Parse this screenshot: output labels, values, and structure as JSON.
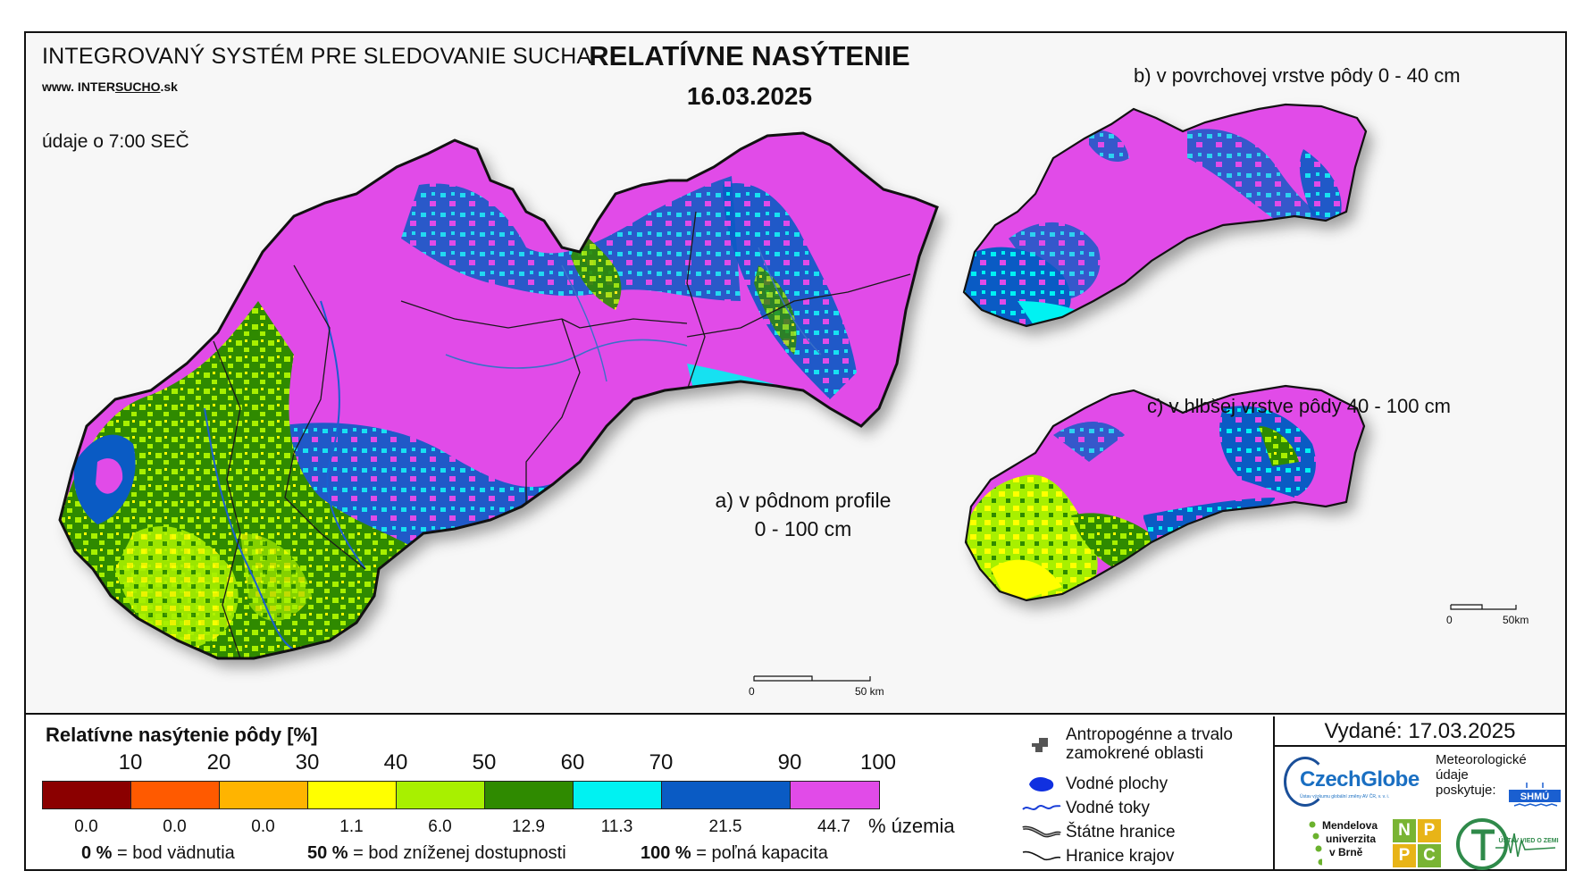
{
  "header": {
    "system_title": "INTEGROVANÝ SYSTÉM PRE SLEDOVANIE SUCHA",
    "web_prefix": "www. INTER",
    "web_brand": "SUCHO",
    "web_suffix": ".sk",
    "hour_note": "údaje o 7:00 SEČ",
    "title": "RELATÍVNE NASÝTENIE",
    "date": "16.03.2025"
  },
  "panels": {
    "a_line1": "a) v pôdnom profile",
    "a_line2": "0 - 100 cm",
    "b": "b) v povrchovej vrstve pôdy 0 - 40 cm",
    "c": "c) v hlbšej vrstve pôdy 40 - 100 cm"
  },
  "scales": {
    "main_zero": "0",
    "main_km": "50 km",
    "small_zero": "0",
    "small_km": "50km"
  },
  "legend": {
    "title": "Relatívne nasýtenie pôdy [%]",
    "ticks": [
      "10",
      "20",
      "30",
      "40",
      "50",
      "60",
      "70",
      "90",
      "100"
    ],
    "classes": [
      {
        "color": "#8b0000",
        "pct": "0.0"
      },
      {
        "color": "#ff5a00",
        "pct": "0.0"
      },
      {
        "color": "#ffb400",
        "pct": "0.0"
      },
      {
        "color": "#ffff00",
        "pct": "1.1"
      },
      {
        "color": "#a8f000",
        "pct": "6.0"
      },
      {
        "color": "#2f8a00",
        "pct": "12.9"
      },
      {
        "color": "#00f2f2",
        "pct": "11.3"
      },
      {
        "color": "#0a5bc4",
        "pct": "21.5"
      },
      {
        "color": "#e14be8",
        "pct": "44.7"
      }
    ],
    "pct_unit": "% územia",
    "notes": [
      {
        "bold": "0 %",
        "text": "= bod vädnutia"
      },
      {
        "bold": "50 %",
        "text": "= bod zníženej dostupnosti"
      },
      {
        "bold": "100 %",
        "text": "= poľná kapacita"
      }
    ]
  },
  "symbols": {
    "anthropogenic_1": "Antropogénne a trvalo",
    "anthropogenic_2": "zamokrené oblasti",
    "water_bodies": "Vodné plochy",
    "water_streams": "Vodné toky",
    "state_border": "Štátne hranice",
    "region_border": "Hranice krajov"
  },
  "credits": {
    "issued": "Vydané: 17.03.2025",
    "czechglobe": "CzechGlobe",
    "czechglobe_sub": "Ústav výzkumu globální změny AV ČR, v. v. i.",
    "meteo_1": "Meteorologické",
    "meteo_2": "údaje",
    "meteo_3": "poskytuje:",
    "shmu": "SHMÚ",
    "mendel_1": "Mendelova",
    "mendel_2": "univerzita",
    "mendel_3": "v Brně",
    "nppc": [
      "N",
      "P",
      "P",
      "C"
    ],
    "uvz": "ÚSTAV VIED O ZEMI"
  },
  "colors": {
    "magenta": "#e14be8",
    "blue": "#0a5bc4",
    "cyan": "#00f2f2",
    "green": "#2f8a00",
    "lightgreen": "#a8f000",
    "yellow": "#ffff00"
  }
}
